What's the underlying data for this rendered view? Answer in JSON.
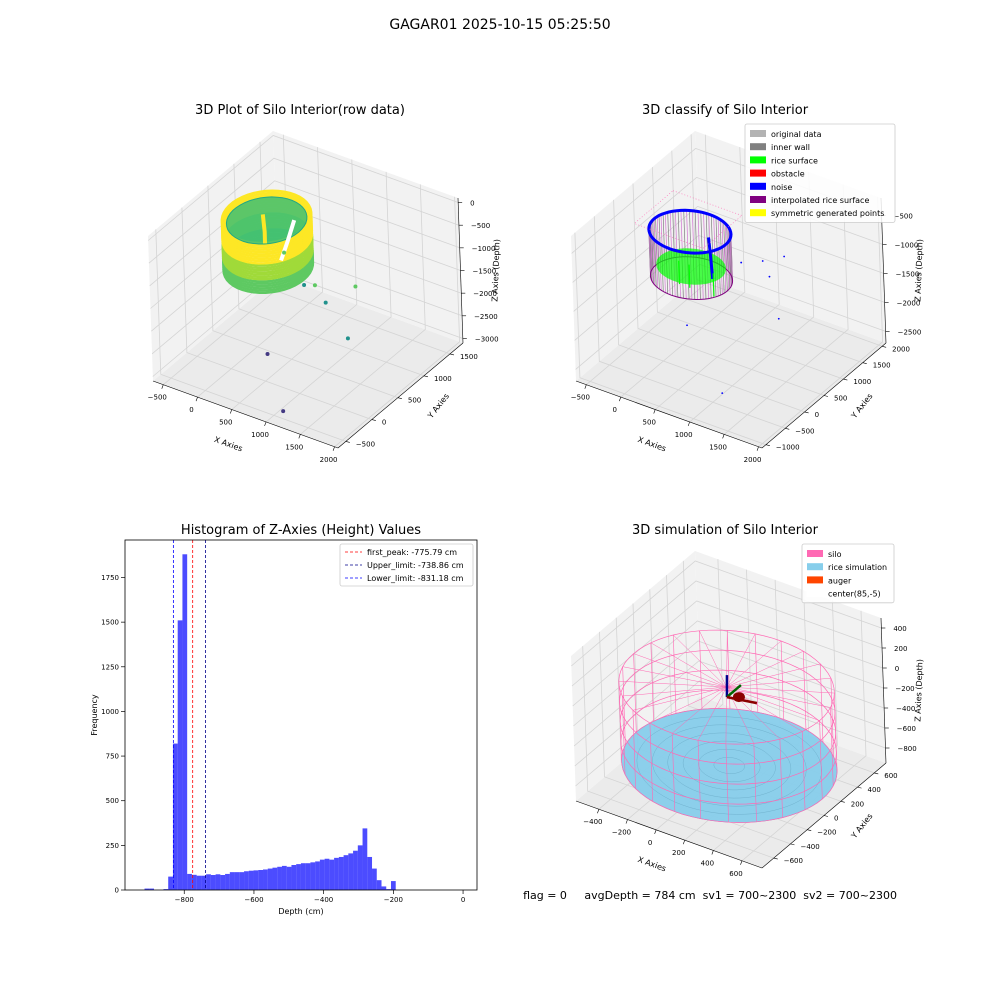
{
  "figure": {
    "suptitle": "GAGAR01 2025-10-15 05:25:50",
    "status": {
      "flag": "flag = 0",
      "avg_depth": "avgDepth = 784 cm",
      "sv1": "sv1 = 700~2300",
      "sv2": "sv2 = 700~2300"
    }
  },
  "chart_data": [
    {
      "id": "raw",
      "type": "scatter",
      "projection": "3d",
      "title": "3D Plot of Silo Interior(row data)",
      "xlabel": "X Axies",
      "ylabel": "Y Axies",
      "zlabel": "Z Axies (Depth)",
      "x_ticks": [
        -500,
        0,
        500,
        1000,
        1500,
        2000
      ],
      "y_ticks": [
        -500,
        0,
        500,
        1000,
        1500
      ],
      "z_ticks": [
        0,
        -500,
        -1000,
        -1500,
        -2000,
        -2500,
        -3000
      ],
      "x_tick_labels": [
        "−500",
        "0",
        "500",
        "1000",
        "1500",
        "2000"
      ],
      "y_tick_labels": [
        "−500",
        "0",
        "500",
        "1000",
        "1500"
      ],
      "z_tick_labels": [
        "0",
        "−500",
        "−1000",
        "−1500",
        "−2000",
        "−2500",
        "−3000"
      ],
      "xlim": [
        -650,
        2050
      ],
      "ylim": [
        -650,
        1750
      ],
      "zlim": [
        -3100,
        100
      ],
      "colormap": [
        "#fde725",
        "#22a884",
        "#2a788e",
        "#440154"
      ],
      "outlier_points": [
        {
          "x": 600,
          "y": 300,
          "z": -500
        },
        {
          "x": 800,
          "y": 400,
          "z": -1200
        },
        {
          "x": 1000,
          "y": 350,
          "z": -1050
        },
        {
          "x": 1150,
          "y": 350,
          "z": -1350
        },
        {
          "x": 1400,
          "y": 600,
          "z": -1100
        },
        {
          "x": 1500,
          "y": 300,
          "z": -1900
        },
        {
          "x": 700,
          "y": -200,
          "z": -2200
        },
        {
          "x": 1100,
          "y": -450,
          "z": -3000
        }
      ],
      "grid": true,
      "pane_color": "#f2f2f2",
      "grid_color": "#d4d4d4"
    },
    {
      "id": "classify",
      "type": "scatter",
      "projection": "3d",
      "title": "3D classify of Silo Interior",
      "xlabel": "X Axies",
      "ylabel": "Y Axies",
      "zlabel": "Z Axies (Depth)",
      "x_ticks": [
        -500,
        0,
        500,
        1000,
        1500,
        2000
      ],
      "y_ticks": [
        -1000,
        -500,
        0,
        500,
        1000,
        1500,
        2000
      ],
      "z_ticks": [
        -500,
        -1000,
        -1500,
        -2000,
        -2500
      ],
      "x_tick_labels": [
        "−500",
        "0",
        "500",
        "1000",
        "1500",
        "2000"
      ],
      "y_tick_labels": [
        "−1000",
        "−500",
        "0",
        "500",
        "1000",
        "1500",
        "2000"
      ],
      "z_tick_labels": [
        "−500",
        "−1000",
        "−1500",
        "−2000",
        "−2500"
      ],
      "xlim": [
        -650,
        2050
      ],
      "ylim": [
        -1100,
        2100
      ],
      "zlim": [
        -2700,
        -200
      ],
      "legend_position": "upper-right",
      "legend": [
        {
          "label": "original data",
          "color": "#b3b3b3"
        },
        {
          "label": "inner wall",
          "color": "#808080"
        },
        {
          "label": "rice surface",
          "color": "#00ff00"
        },
        {
          "label": "obstacle",
          "color": "#ff0000"
        },
        {
          "label": "noise",
          "color": "#0000ff"
        },
        {
          "label": "interpolated rice surface",
          "color": "#800080"
        },
        {
          "label": "symmetric generated points",
          "color": "#ffff00"
        }
      ],
      "noise_points": [
        {
          "x": 900,
          "y": 500,
          "z": -900
        },
        {
          "x": 1100,
          "y": 700,
          "z": -900
        },
        {
          "x": 1250,
          "y": 600,
          "z": -1050
        },
        {
          "x": 1300,
          "y": 900,
          "z": -850
        },
        {
          "x": 1600,
          "y": 200,
          "z": -1400
        },
        {
          "x": 600,
          "y": -400,
          "z": -1600
        },
        {
          "x": 1200,
          "y": -600,
          "z": -2400
        }
      ],
      "grid": true
    },
    {
      "id": "histogram",
      "type": "bar",
      "title": "Histogram of Z-Axies (Height) Values",
      "xlabel": "Depth (cm)",
      "ylabel": "Frequency",
      "xlim": [
        -970,
        40
      ],
      "ylim": [
        0,
        1960
      ],
      "x_ticks": [
        -800,
        -600,
        -400,
        -200,
        0
      ],
      "x_tick_labels": [
        "−800",
        "−600",
        "−400",
        "−200",
        "0"
      ],
      "y_ticks": [
        0,
        250,
        500,
        750,
        1000,
        1250,
        1500,
        1750
      ],
      "y_tick_labels": [
        "0",
        "250",
        "500",
        "750",
        "1000",
        "1250",
        "1500",
        "1750"
      ],
      "bar_color": "#0000ff",
      "bar_alpha": 0.7,
      "bin_width": 13.6,
      "bin_start": -914,
      "values": [
        8,
        8,
        0,
        0,
        5,
        75,
        820,
        1510,
        1880,
        90,
        85,
        80,
        80,
        88,
        84,
        88,
        84,
        90,
        100,
        100,
        100,
        105,
        108,
        110,
        112,
        115,
        120,
        125,
        130,
        135,
        130,
        140,
        145,
        150,
        150,
        155,
        160,
        170,
        175,
        170,
        180,
        185,
        195,
        205,
        220,
        250,
        345,
        185,
        120,
        55,
        20,
        5,
        50
      ],
      "vlines": [
        {
          "x": -775.79,
          "label": "first_peak: -775.79 cm",
          "color": "#ff0000"
        },
        {
          "x": -738.86,
          "label": "Upper_limit: -738.86 cm",
          "color": "#00008b"
        },
        {
          "x": -831.18,
          "label": "Lower_limit: -831.18 cm",
          "color": "#0000ff"
        }
      ],
      "legend_position": "upper-right"
    },
    {
      "id": "simulation",
      "type": "scatter",
      "projection": "3d",
      "title": "3D simulation of Silo Interior",
      "xlabel": "X Axies",
      "ylabel": "Y Axies",
      "zlabel": "Z Axies (Depth)",
      "x_ticks": [
        -400,
        -200,
        0,
        200,
        400,
        600
      ],
      "y_ticks": [
        -600,
        -400,
        -200,
        0,
        200,
        400,
        600
      ],
      "z_ticks": [
        400,
        200,
        0,
        -200,
        -400,
        -600,
        -800
      ],
      "x_tick_labels": [
        "−400",
        "−200",
        "0",
        "200",
        "400",
        "600"
      ],
      "y_tick_labels": [
        "−600",
        "−400",
        "−200",
        "0",
        "200",
        "400",
        "600"
      ],
      "z_tick_labels": [
        "400",
        "200",
        "0",
        "−200",
        "−400",
        "−600",
        "−800"
      ],
      "xlim": [
        -560,
        740
      ],
      "ylim": [
        -740,
        740
      ],
      "zlim": [
        -950,
        500
      ],
      "legend_position": "upper-right",
      "legend": [
        {
          "label": "silo",
          "color": "#ff69b4"
        },
        {
          "label": "rice simulation",
          "color": "#87ceeb"
        },
        {
          "label": "auger",
          "color": "#ff4500"
        },
        {
          "label": "center(85,-5)",
          "color": "#ffffff"
        }
      ],
      "silo": {
        "cx": 85,
        "cy": -5,
        "radius": 650,
        "top_z": 0,
        "bottom_z": -784
      },
      "grid": true
    }
  ]
}
